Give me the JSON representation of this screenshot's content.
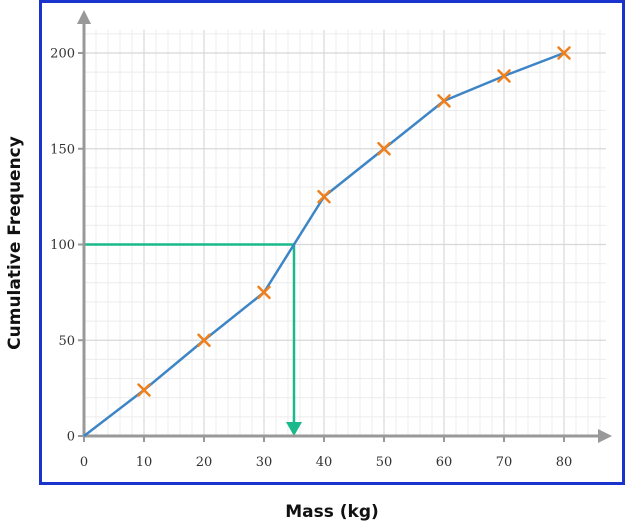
{
  "chart_data": {
    "type": "line",
    "title": "",
    "xlabel": "Mass (kg)",
    "ylabel": "Cumulative Frequency",
    "xlim": [
      0,
      87
    ],
    "ylim": [
      0,
      210
    ],
    "grid": true,
    "x_ticks": [
      0,
      10,
      20,
      30,
      40,
      50,
      60,
      70,
      80
    ],
    "y_ticks": [
      0,
      50,
      100,
      150,
      200
    ],
    "series": [
      {
        "x": [
          0,
          10,
          20,
          30,
          40,
          50,
          60,
          70,
          80
        ],
        "y": [
          0,
          24,
          50,
          75,
          125,
          150,
          175,
          188,
          200
        ]
      }
    ],
    "reading": {
      "y_value": 100,
      "x_value": 35
    },
    "colors": {
      "border": "#1a33cc",
      "curve": "#3d85c6",
      "markers": "#f07f1a",
      "reading_line": "#1ab98c",
      "axes": "#999999",
      "grid_major": "#d8d8d8",
      "grid_minor": "#ececec"
    }
  }
}
